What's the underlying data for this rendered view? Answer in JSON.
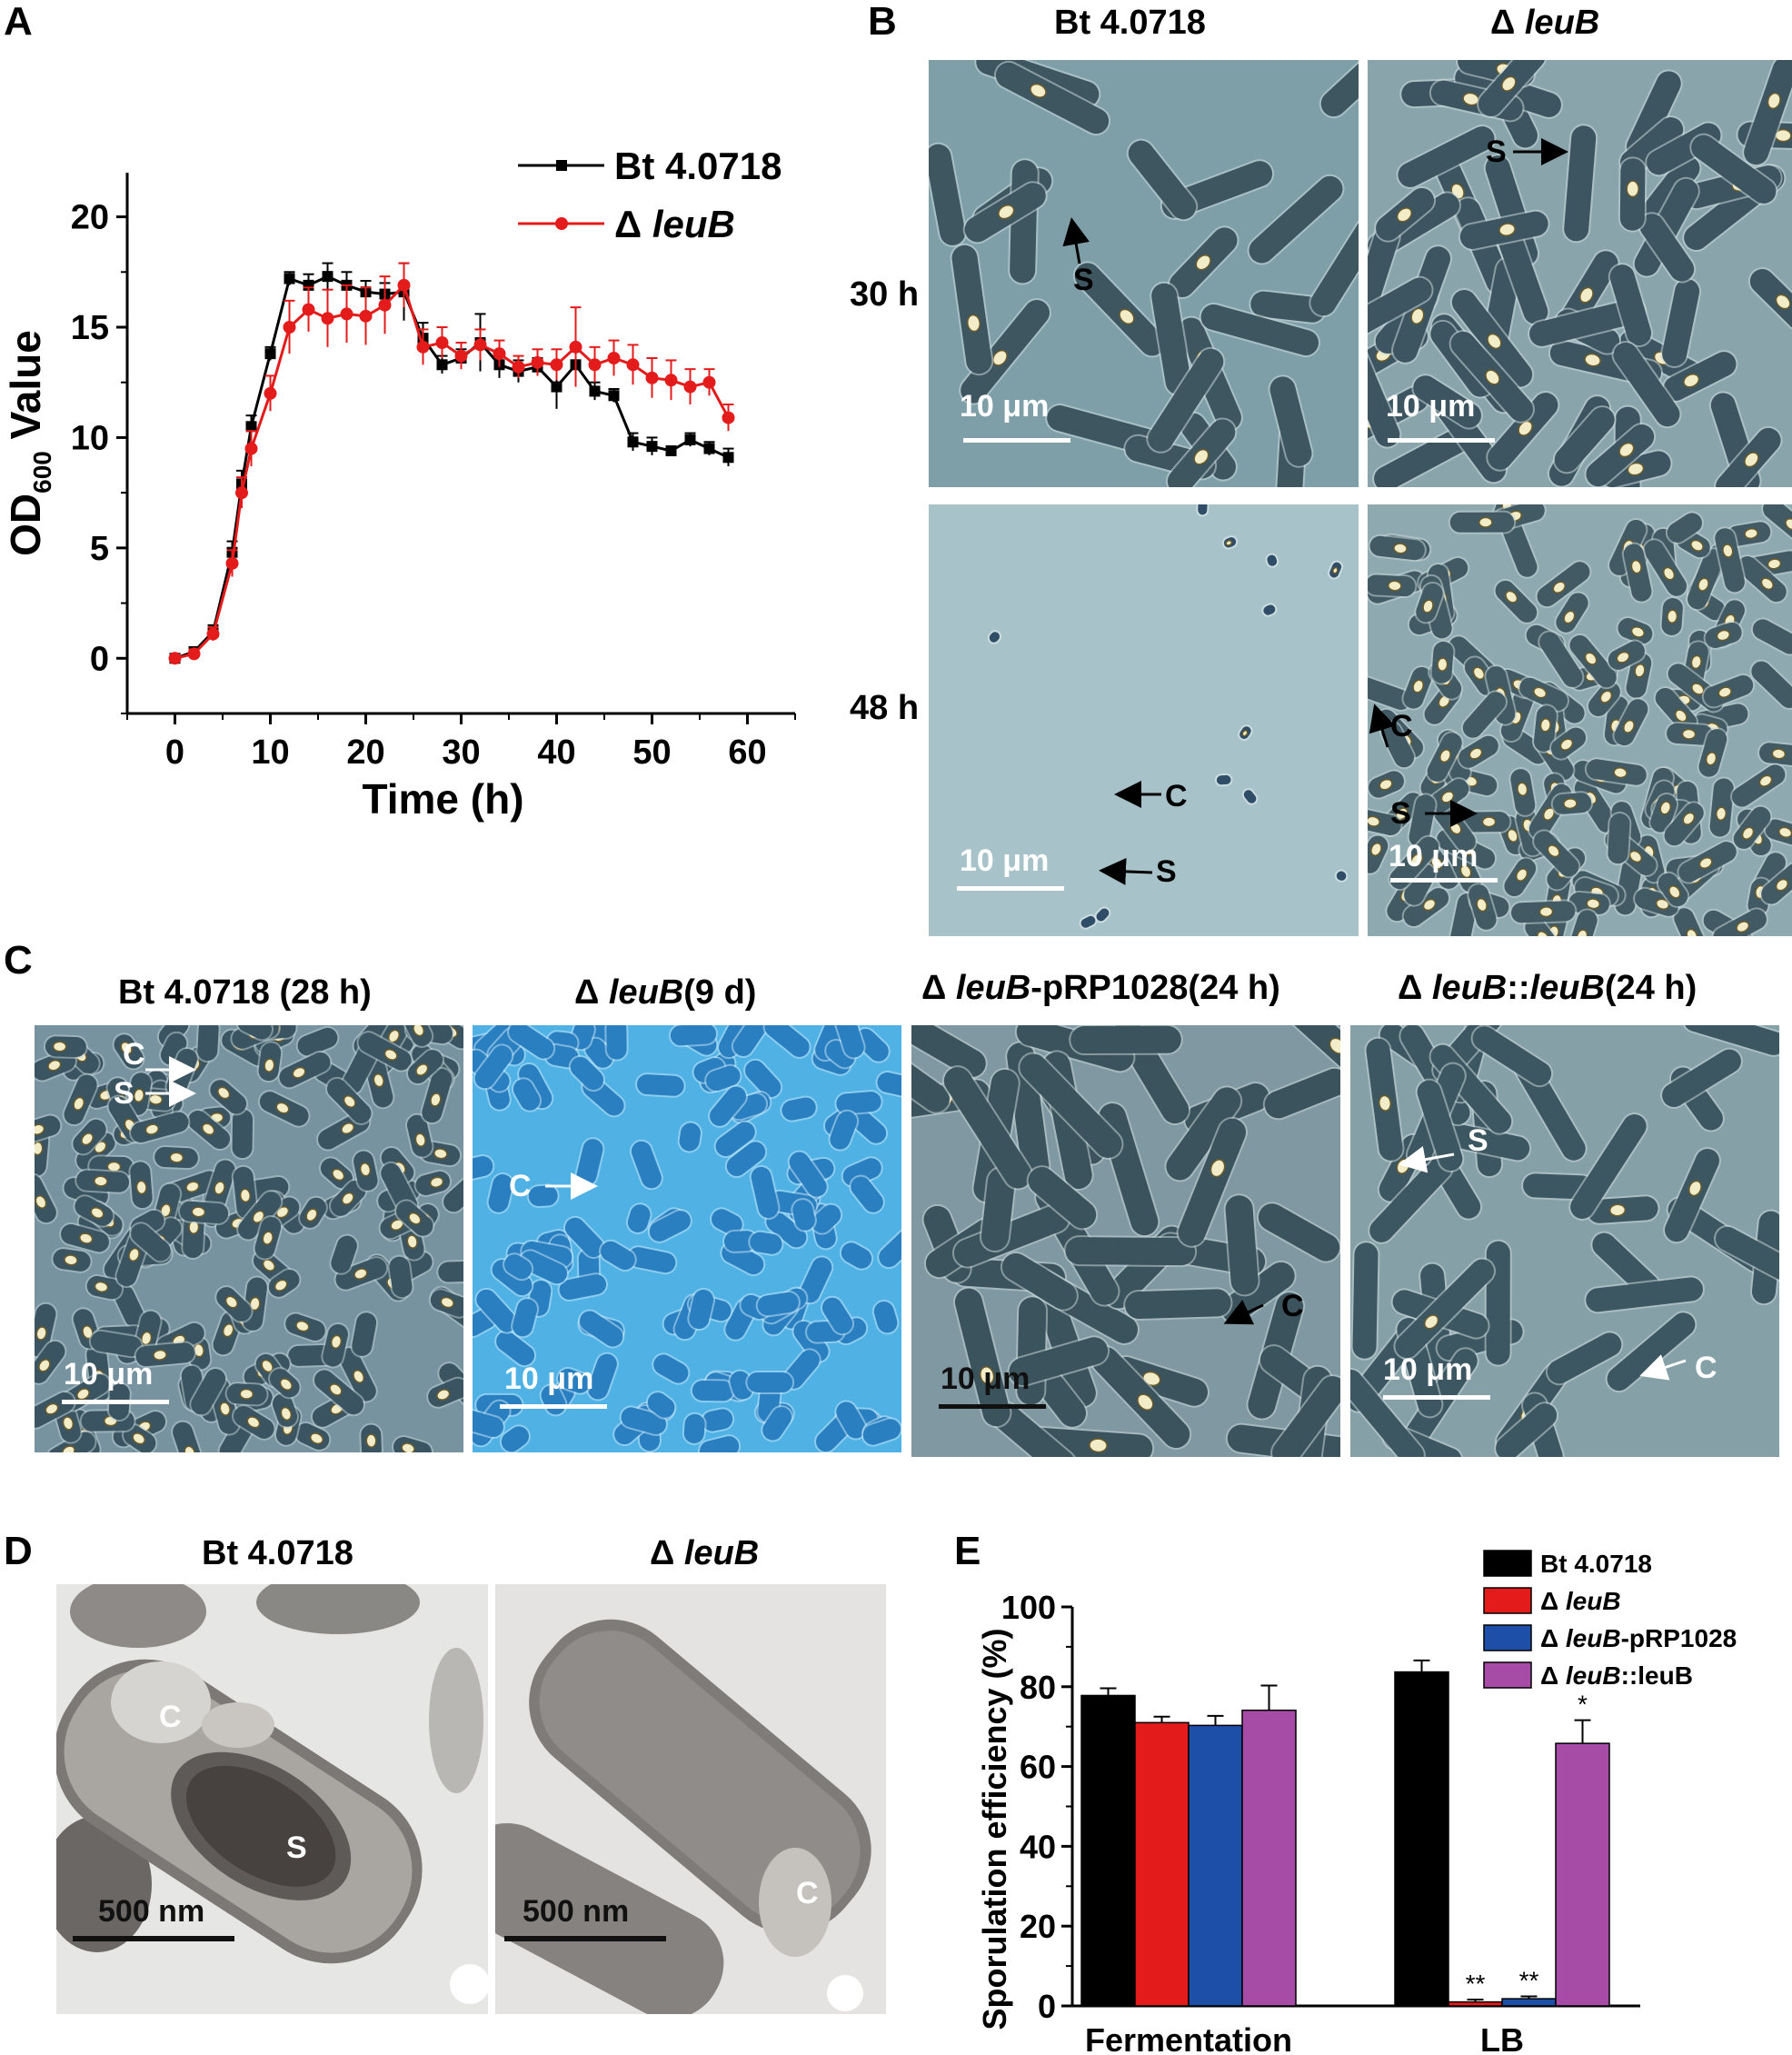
{
  "panel_labels": {
    "a": "A",
    "b": "B",
    "c": "C",
    "d": "D",
    "e": "E"
  },
  "panel_b": {
    "col1_title": "Bt 4.0718",
    "col2_delta": "Δ",
    "col2_gene": "leuB",
    "row1_label": "30 h",
    "row2_label": "48 h",
    "scale": "10 μm",
    "mark_s": "S",
    "mark_c": "C"
  },
  "panel_c": {
    "t1": "Bt 4.0718 (28 h)",
    "t2_delta": "Δ",
    "t2_gene": "leuB",
    "t2_rest": "(9 d)",
    "t3_delta": "Δ",
    "t3_gene": "leuB",
    "t3_rest": "-pRP1028(24 h)",
    "t4_delta": "Δ",
    "t4_gene": "leuB",
    "t4_mid": "::",
    "t4_gene2": "leuB",
    "t4_rest": "(24 h)",
    "scale": "10 μm",
    "mark_s": "S",
    "mark_c": "C"
  },
  "panel_d": {
    "t1": "Bt 4.0718",
    "t2_delta": "Δ",
    "t2_gene": "leuB",
    "scale": "500 nm",
    "mark_s": "S",
    "mark_c": "C"
  },
  "colors": {
    "wildtype": "#000000",
    "leuB": "#e41b1b",
    "complement_plasmid": "#1e4fa8",
    "complement_chrom": "#a64ca6"
  },
  "chart_data": [
    {
      "id": "A",
      "type": "line",
      "xlabel": "Time (h)",
      "ylabel_main": "OD",
      "ylabel_sub": "600",
      "ylabel_rest": " Value",
      "xlim": [
        -5,
        65
      ],
      "ylim": [
        -2.5,
        22
      ],
      "xticks": [
        0,
        10,
        20,
        30,
        40,
        50,
        60
      ],
      "yticks": [
        0,
        5,
        10,
        15,
        20
      ],
      "legend_position": "top-right",
      "series": [
        {
          "name": "Bt 4.0718",
          "color": "#000000",
          "marker": "square",
          "x": [
            0,
            2,
            4,
            6,
            7,
            8,
            10,
            12,
            14,
            16,
            18,
            20,
            22,
            24,
            26,
            28,
            30,
            32,
            34,
            36,
            38,
            40,
            42,
            44,
            46,
            48,
            50,
            52,
            54,
            56,
            58
          ],
          "y": [
            0.0,
            0.3,
            1.2,
            4.8,
            7.9,
            10.5,
            13.8,
            17.2,
            16.9,
            17.3,
            16.9,
            16.6,
            16.5,
            16.6,
            14.5,
            13.3,
            13.6,
            14.3,
            13.3,
            13.0,
            13.2,
            12.3,
            13.3,
            12.1,
            11.9,
            9.8,
            9.6,
            9.4,
            9.9,
            9.5,
            9.1
          ],
          "err": [
            0.1,
            0.2,
            0.3,
            0.5,
            0.6,
            0.5,
            0.3,
            0.3,
            0.5,
            0.6,
            0.6,
            0.5,
            0.5,
            1.3,
            0.7,
            0.4,
            0.4,
            1.3,
            0.6,
            0.5,
            0.4,
            1.0,
            0.6,
            0.4,
            0.3,
            0.4,
            0.4,
            0.2,
            0.3,
            0.3,
            0.4
          ]
        },
        {
          "name": "Δ leuB",
          "color": "#e41b1b",
          "marker": "circle",
          "x": [
            0,
            2,
            4,
            6,
            7,
            8,
            10,
            12,
            14,
            16,
            18,
            20,
            22,
            24,
            26,
            28,
            30,
            32,
            34,
            36,
            38,
            40,
            42,
            44,
            46,
            48,
            50,
            52,
            54,
            56,
            58
          ],
          "y": [
            0.0,
            0.2,
            1.1,
            4.3,
            7.5,
            9.5,
            12.0,
            15.0,
            15.8,
            15.4,
            15.6,
            15.5,
            16.0,
            16.9,
            14.1,
            14.3,
            13.7,
            14.2,
            13.8,
            13.2,
            13.4,
            13.3,
            14.1,
            13.3,
            13.6,
            13.3,
            12.7,
            12.6,
            12.3,
            12.5,
            10.9
          ],
          "err": [
            0.1,
            0.2,
            0.3,
            0.6,
            0.7,
            0.8,
            0.8,
            1.2,
            1.0,
            1.3,
            1.3,
            1.3,
            1.3,
            1.0,
            0.8,
            0.7,
            0.6,
            0.7,
            0.6,
            0.5,
            0.6,
            0.7,
            1.8,
            0.8,
            0.8,
            0.9,
            0.9,
            0.9,
            0.8,
            0.6,
            0.6
          ]
        }
      ]
    },
    {
      "id": "E",
      "type": "bar",
      "ylabel": "Sporulation efficiency (%)",
      "ylim": [
        0,
        100
      ],
      "yticks": [
        0,
        20,
        40,
        60,
        80,
        100
      ],
      "categories": [
        "Fermentation",
        "LB"
      ],
      "legend_position": "top-right",
      "series": [
        {
          "name": "Bt 4.0718",
          "name_delta": "",
          "name_gene": "",
          "name_rest": "Bt 4.0718",
          "color": "#000000",
          "values": [
            77.8,
            83.7
          ],
          "err": [
            1.8,
            2.9
          ],
          "sig": [
            "",
            ""
          ]
        },
        {
          "name": "Δ leuB",
          "name_delta": "Δ ",
          "name_gene": "leuB",
          "name_rest": "",
          "color": "#e41b1b",
          "values": [
            71.0,
            1.0
          ],
          "err": [
            1.5,
            0.6
          ],
          "sig": [
            "",
            "**"
          ]
        },
        {
          "name": "Δ leuB-pRP1028",
          "name_delta": "Δ ",
          "name_gene": "leuB",
          "name_rest": "-pRP1028",
          "color": "#1e4fa8",
          "values": [
            70.3,
            1.8
          ],
          "err": [
            2.4,
            0.6
          ],
          "sig": [
            "",
            "**"
          ]
        },
        {
          "name": "Δ leuB::leuB",
          "name_delta": "Δ ",
          "name_gene": "leuB",
          "name_rest": "::leuB",
          "color": "#a64ca6",
          "values": [
            74.1,
            65.8
          ],
          "err": [
            6.2,
            5.8
          ],
          "sig": [
            "",
            "*"
          ]
        }
      ]
    }
  ]
}
